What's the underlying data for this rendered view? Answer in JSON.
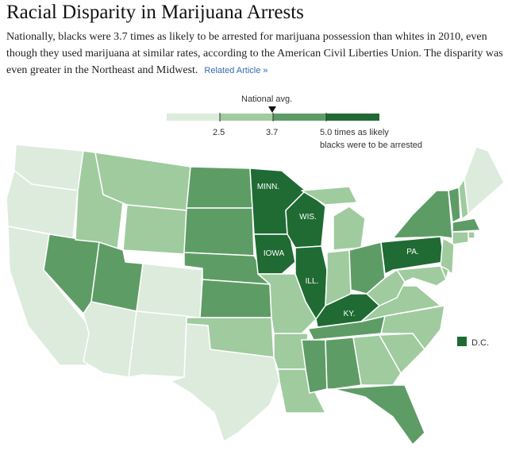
{
  "title": "Racial Disparity in Marijuana Arrests",
  "description": "Nationally, blacks were 3.7 times as likely to be arrested for marijuana possession than whites in 2010, even though they used marijuana at similar rates, according to the American Civil Liberties Union. The disparity was even greater in the Northeast and Midwest.",
  "related_link": "Related Article »",
  "legend": {
    "marker_label": "National avg.",
    "marker_value": 3.7,
    "ticks": [
      "2.5",
      "3.7"
    ],
    "last_tick": "5.0 times as likely",
    "last_tick_line2": "blacks were to be arrested",
    "colors": [
      "#dcebdc",
      "#9fcb9f",
      "#5e9c66",
      "#1f6b33"
    ]
  },
  "map": {
    "dc_label": "D.C.",
    "labels": {
      "MN": "MINN.",
      "WI": "WIS.",
      "IA": "IOWA",
      "IL": "ILL.",
      "KY": "KY.",
      "PA": "PA."
    },
    "state_class": {
      "WA": 0,
      "OR": 0,
      "CA": 0,
      "AZ": 0,
      "NM": 0,
      "TX": 0,
      "CO": 0,
      "ME": 0,
      "ID": 1,
      "MT": 1,
      "WY": 1,
      "OK": 1,
      "LA": 1,
      "AR": 1,
      "MO": 1,
      "GA": 1,
      "SC": 1,
      "NC": 1,
      "VA": 1,
      "WV": 1,
      "IN": 1,
      "MI": 1,
      "NJ": 1,
      "CT": 1,
      "RI": 1,
      "NH": 1,
      "MD": 1,
      "DE": 1,
      "NV": 2,
      "UT": 2,
      "ND": 2,
      "SD": 2,
      "NE": 2,
      "KS": 2,
      "OH": 2,
      "MS": 2,
      "AL": 2,
      "FL": 2,
      "NY": 2,
      "VT": 2,
      "MA": 2,
      "TN": 2,
      "MN": 3,
      "WI": 3,
      "IA": 3,
      "IL": 3,
      "KY": 3,
      "PA": 3,
      "DC": 3
    }
  }
}
